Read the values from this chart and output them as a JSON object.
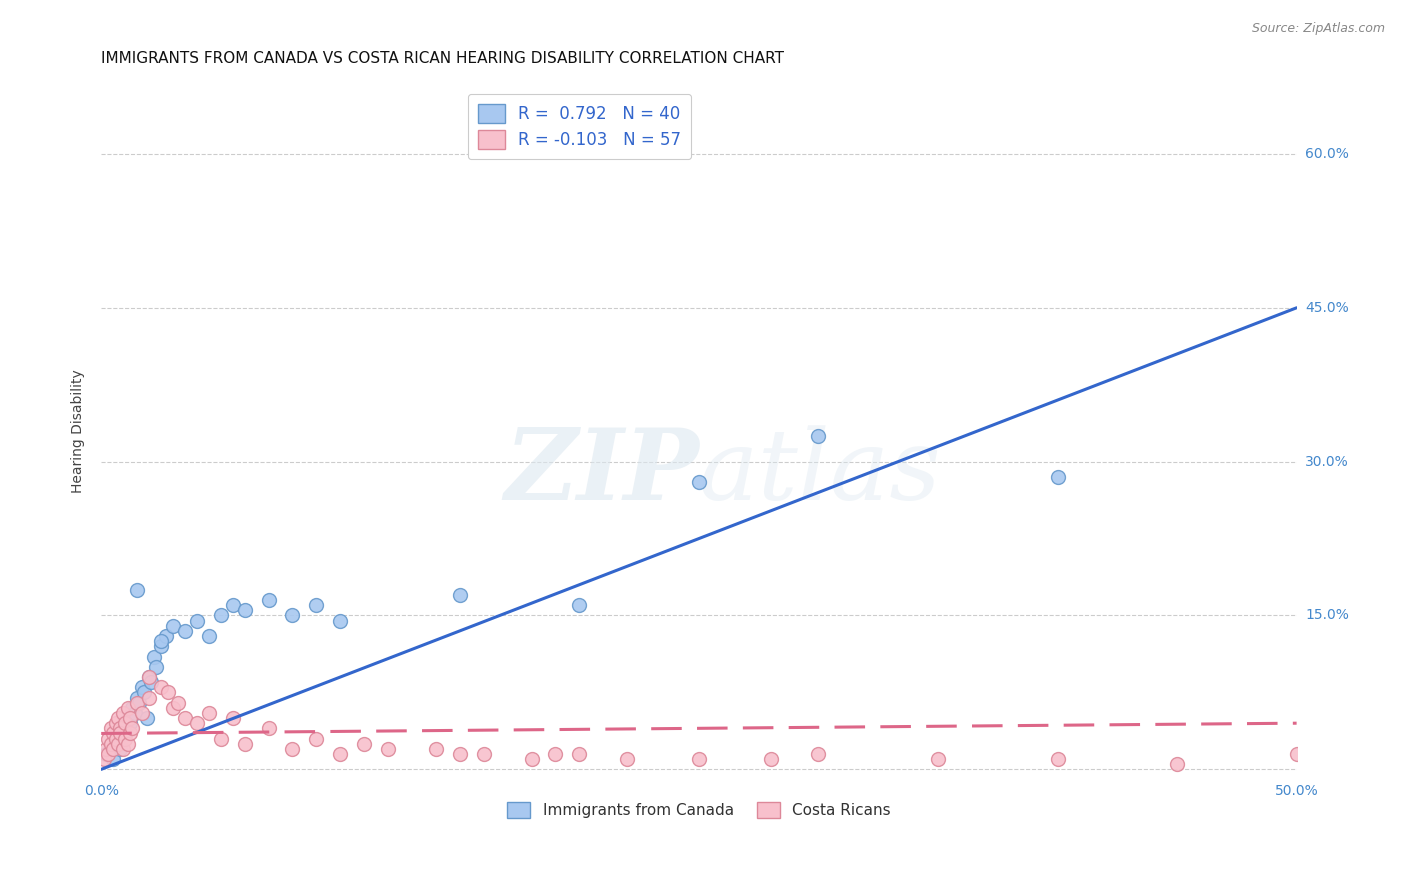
{
  "title": "IMMIGRANTS FROM CANADA VS COSTA RICAN HEARING DISABILITY CORRELATION CHART",
  "source": "Source: ZipAtlas.com",
  "ylabel": "Hearing Disability",
  "ytick_values": [
    0,
    15,
    30,
    45,
    60
  ],
  "xlim": [
    0,
    50
  ],
  "ylim": [
    -1,
    67
  ],
  "blue_color": "#a8c8f0",
  "blue_edge_color": "#6699cc",
  "blue_line_color": "#3366cc",
  "pink_color": "#f8c0cc",
  "pink_edge_color": "#dd8899",
  "pink_line_color": "#dd6688",
  "watermark_color": "#dde8f0",
  "blue_scatter_x": [
    0.2,
    0.4,
    0.5,
    0.7,
    0.8,
    0.9,
    1.0,
    1.1,
    1.2,
    1.3,
    1.4,
    1.5,
    1.6,
    1.7,
    1.8,
    1.9,
    2.0,
    2.1,
    2.2,
    2.3,
    2.5,
    2.7,
    3.0,
    3.5,
    4.0,
    4.5,
    5.0,
    5.5,
    6.0,
    7.0,
    8.0,
    9.0,
    10.0,
    15.0,
    20.0,
    25.0,
    30.0,
    40.0,
    1.5,
    2.5
  ],
  "blue_scatter_y": [
    1.5,
    2.5,
    1.0,
    3.0,
    2.0,
    4.0,
    3.5,
    5.0,
    4.5,
    6.0,
    5.5,
    7.0,
    6.5,
    8.0,
    7.5,
    5.0,
    9.0,
    8.5,
    11.0,
    10.0,
    12.0,
    13.0,
    14.0,
    13.5,
    14.5,
    13.0,
    15.0,
    16.0,
    15.5,
    16.5,
    15.0,
    16.0,
    14.5,
    17.0,
    16.0,
    28.0,
    32.5,
    28.5,
    17.5,
    12.5
  ],
  "pink_scatter_x": [
    0.1,
    0.2,
    0.3,
    0.3,
    0.4,
    0.4,
    0.5,
    0.5,
    0.6,
    0.6,
    0.7,
    0.7,
    0.8,
    0.8,
    0.9,
    0.9,
    1.0,
    1.0,
    1.1,
    1.1,
    1.2,
    1.2,
    1.3,
    1.5,
    1.7,
    2.0,
    2.5,
    3.0,
    3.5,
    4.0,
    5.0,
    6.0,
    8.0,
    10.0,
    12.0,
    15.0,
    18.0,
    20.0,
    25.0,
    30.0,
    35.0,
    40.0,
    45.0,
    50.0,
    2.0,
    2.8,
    3.2,
    4.5,
    5.5,
    7.0,
    9.0,
    11.0,
    14.0,
    16.0,
    19.0,
    22.0,
    28.0
  ],
  "pink_scatter_y": [
    1.0,
    2.0,
    1.5,
    3.0,
    2.5,
    4.0,
    3.5,
    2.0,
    4.5,
    3.0,
    5.0,
    2.5,
    4.0,
    3.5,
    5.5,
    2.0,
    3.0,
    4.5,
    6.0,
    2.5,
    3.5,
    5.0,
    4.0,
    6.5,
    5.5,
    7.0,
    8.0,
    6.0,
    5.0,
    4.5,
    3.0,
    2.5,
    2.0,
    1.5,
    2.0,
    1.5,
    1.0,
    1.5,
    1.0,
    1.5,
    1.0,
    1.0,
    0.5,
    1.5,
    9.0,
    7.5,
    6.5,
    5.5,
    5.0,
    4.0,
    3.0,
    2.5,
    2.0,
    1.5,
    1.5,
    1.0,
    1.0
  ],
  "blue_line_x": [
    0,
    50
  ],
  "blue_line_y": [
    0,
    45
  ],
  "pink_line_x": [
    0,
    50
  ],
  "pink_line_y": [
    3.5,
    4.5
  ]
}
